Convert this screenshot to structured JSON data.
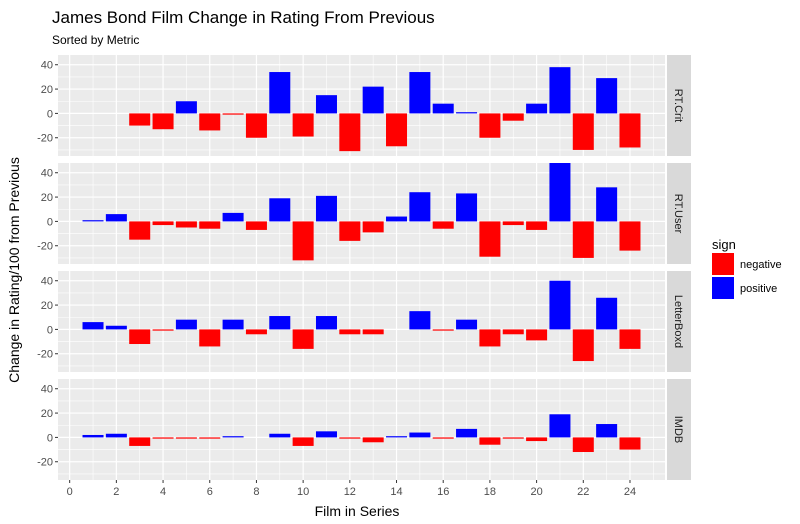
{
  "chart_data": {
    "type": "bar",
    "title": "James Bond Film Change in Rating From Previous",
    "subtitle": "Sorted by Metric",
    "xlabel": "Film in Series",
    "ylabel": "Change in Rating/100 from Previous",
    "x_ticks": [
      "0",
      "2",
      "4",
      "6",
      "8",
      "10",
      "12",
      "14",
      "16",
      "18",
      "20",
      "22",
      "24"
    ],
    "y_ticks": [
      "-20",
      "0",
      "20",
      "40"
    ],
    "xlim": [
      -0.5,
      25.5
    ],
    "ylim": [
      -35,
      48
    ],
    "grid": true,
    "facets": [
      "RT.Crit",
      "RT.User",
      "LetterBoxd",
      "IMDB"
    ],
    "legend": {
      "title": "sign",
      "position": "right",
      "entries": [
        {
          "label": "negative",
          "color": "#ff0000"
        },
        {
          "label": "positive",
          "color": "#0000ff"
        }
      ]
    },
    "colors": {
      "positive": "#0000ff",
      "negative": "#ff0000",
      "panel": "#ebebeb",
      "strip": "#d9d9d9"
    },
    "x": [
      1,
      2,
      3,
      4,
      5,
      6,
      7,
      8,
      9,
      10,
      11,
      12,
      13,
      14,
      15,
      16,
      17,
      18,
      19,
      20,
      21,
      22,
      23,
      24
    ],
    "series": [
      {
        "facet": "RT.Crit",
        "values": [
          0,
          0,
          -10,
          -13,
          10,
          -14,
          -1,
          -20,
          34,
          -19,
          15,
          -31,
          22,
          -27,
          34,
          8,
          1,
          -20,
          -6,
          8,
          38,
          -30,
          29,
          -28
        ]
      },
      {
        "facet": "RT.User",
        "values": [
          1,
          6,
          -15,
          -3,
          -5,
          -6,
          7,
          -7,
          19,
          -32,
          21,
          -16,
          -9,
          4,
          24,
          -6,
          23,
          -29,
          -3,
          -7,
          48,
          -30,
          28,
          -24
        ]
      },
      {
        "facet": "LetterBoxd",
        "values": [
          6,
          3,
          -12,
          -1,
          8,
          -14,
          8,
          -4,
          11,
          -16,
          11,
          -4,
          -4,
          0,
          15,
          -1,
          8,
          -14,
          -4,
          -9,
          40,
          -26,
          26,
          -16
        ]
      },
      {
        "facet": "IMDB",
        "values": [
          2,
          3,
          -7,
          -1,
          -1,
          -1,
          1,
          0,
          3,
          -7,
          5,
          -1,
          -4,
          1,
          4,
          -1,
          7,
          -6,
          -1,
          -3,
          19,
          -12,
          11,
          -10
        ]
      }
    ]
  }
}
